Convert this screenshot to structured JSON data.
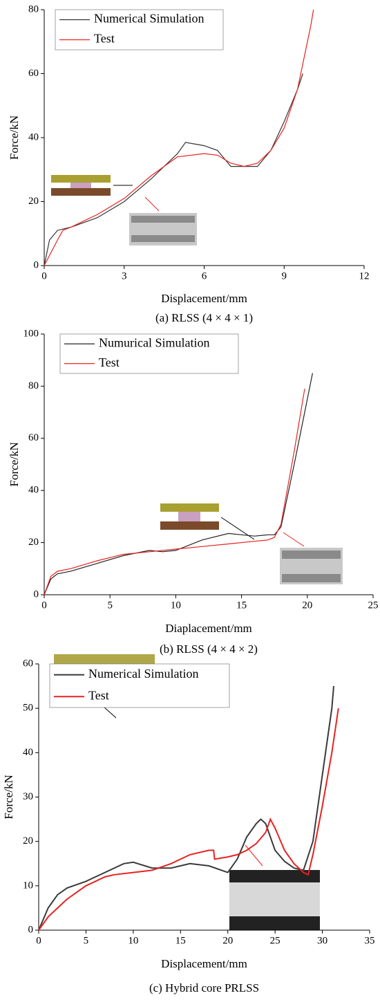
{
  "chart_data": [
    {
      "type": "line",
      "xlabel": "Displacement/mm",
      "ylabel": "Force/kN",
      "caption": "(a) RLSS (4 × 4 × 1)",
      "xlim": [
        0,
        12
      ],
      "ylim": [
        0,
        80
      ],
      "xticks": [
        0,
        3,
        6,
        9,
        12
      ],
      "yticks": [
        0,
        20,
        40,
        60,
        80
      ],
      "legend": "upper left",
      "series": [
        {
          "name": "Numerical Simulation",
          "color": "#333333",
          "x": [
            0,
            0.2,
            0.5,
            1,
            2,
            3,
            4,
            5,
            5.3,
            6,
            6.5,
            7,
            7.5,
            8,
            8.5,
            9,
            9.5,
            9.7
          ],
          "values": [
            0,
            8,
            11,
            12,
            15,
            20,
            27,
            35,
            38.5,
            37.5,
            36,
            31,
            31,
            31,
            36,
            45,
            55,
            60
          ]
        },
        {
          "name": "Test",
          "color": "#e8211f",
          "x": [
            0,
            0.5,
            0.7,
            1,
            2,
            3,
            4,
            5,
            6,
            6.5,
            7,
            7.5,
            8,
            8.5,
            9,
            9.5,
            10,
            10.1
          ],
          "values": [
            0,
            8,
            11,
            12,
            16,
            21,
            28,
            34,
            35,
            34.5,
            32,
            31,
            32,
            36,
            43,
            55,
            75,
            80
          ]
        }
      ]
    },
    {
      "type": "line",
      "xlabel": "Diaplacement/mm",
      "ylabel": "Force/kN",
      "caption": "(b) RLSS (4 × 4 × 2)",
      "xlim": [
        0,
        25
      ],
      "ylim": [
        0,
        100
      ],
      "xticks": [
        0,
        5,
        10,
        15,
        20,
        25
      ],
      "yticks": [
        0,
        20,
        40,
        60,
        80,
        100
      ],
      "legend": "upper left",
      "series": [
        {
          "name": "Numurical Simulation",
          "color": "#222222",
          "x": [
            0,
            0.5,
            1,
            2,
            4,
            6,
            8,
            9,
            10,
            12,
            14,
            15,
            16,
            17,
            17.5,
            18,
            19,
            20,
            20.4
          ],
          "values": [
            0,
            6,
            8,
            9,
            12,
            15,
            17,
            16.5,
            17,
            21,
            23.5,
            23,
            22.5,
            23,
            23,
            26,
            50,
            75,
            85
          ]
        },
        {
          "name": "Test",
          "color": "#e8211f",
          "x": [
            0,
            0.5,
            1,
            2,
            4,
            6,
            8,
            10,
            12,
            14,
            16,
            17,
            17.5,
            18,
            19,
            19.8
          ],
          "values": [
            0,
            7,
            9,
            10,
            13,
            15.5,
            16.5,
            17.5,
            18.5,
            19.5,
            20.5,
            21,
            22,
            27,
            55,
            79
          ]
        }
      ]
    },
    {
      "type": "line",
      "xlabel": "Displacement/mm",
      "ylabel": "Force/kN",
      "caption": "(c) Hybrid core PRLSS",
      "xlim": [
        0,
        35
      ],
      "ylim": [
        0,
        60
      ],
      "xticks": [
        0,
        5,
        10,
        15,
        20,
        25,
        30,
        35
      ],
      "yticks": [
        0,
        10,
        20,
        30,
        40,
        50,
        60
      ],
      "legend": "upper left",
      "series": [
        {
          "name": "Numerical Simulation",
          "color": "#3a3a3a",
          "x": [
            0,
            1,
            2,
            3,
            5,
            7,
            9,
            10,
            12,
            14,
            16,
            18,
            20,
            21,
            22,
            23,
            23.5,
            24,
            25,
            26,
            27,
            28,
            29,
            30,
            31,
            31.2
          ],
          "values": [
            0,
            5,
            8,
            9.5,
            11,
            13,
            15,
            15.3,
            14,
            14,
            15,
            14.5,
            13,
            16,
            21,
            24,
            25,
            24,
            18,
            15.5,
            14,
            13.5,
            20,
            35,
            50,
            55
          ]
        },
        {
          "name": "Test",
          "color": "#e8211f",
          "x": [
            0,
            1,
            2,
            3,
            5,
            7,
            8,
            10,
            12,
            14,
            16,
            18,
            18.5,
            18.6,
            20,
            21,
            22,
            23,
            24,
            24.5,
            25,
            26,
            27,
            28,
            28.5,
            29,
            30,
            31,
            31.7
          ],
          "values": [
            0,
            3,
            5,
            7,
            10,
            12,
            12.5,
            13,
            13.5,
            15,
            17,
            18,
            18,
            16,
            16.5,
            17,
            18,
            19.5,
            22,
            25,
            23,
            18,
            15,
            13,
            12.5,
            17,
            28,
            40,
            50
          ]
        }
      ]
    }
  ]
}
